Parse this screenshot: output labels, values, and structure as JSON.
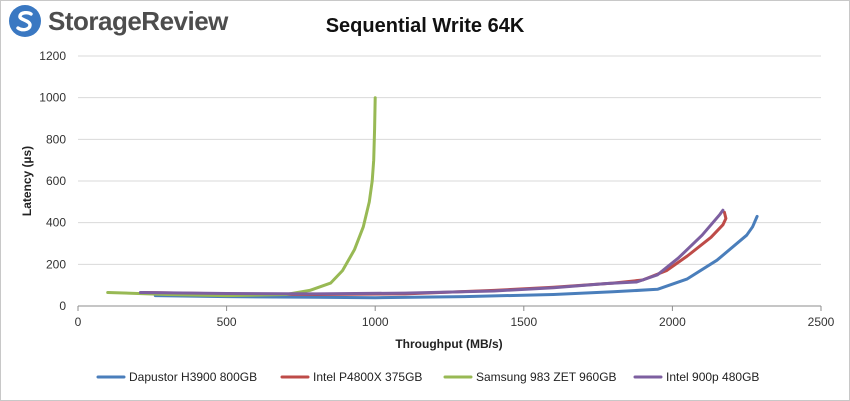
{
  "brand": {
    "name": "StorageReview",
    "icon": "storagereview-logo-icon",
    "color": "#3a78c2"
  },
  "chart_data": {
    "type": "line",
    "title": "Sequential Write 64K",
    "xlabel": "Throughput (MB/s)",
    "ylabel": "Latency (µs)",
    "xlim": [
      0,
      2500
    ],
    "ylim": [
      0,
      1200
    ],
    "xticks": [
      "0",
      "500",
      "1000",
      "1500",
      "2000",
      "2500"
    ],
    "yticks": [
      "0",
      "200",
      "400",
      "600",
      "800",
      "1000",
      "1200"
    ],
    "grid": "horizontal",
    "legend": "bottom",
    "series": [
      {
        "name": "Dapustor H3900 800GB",
        "color": "#4a7ebb",
        "x": [
          260,
          500,
          800,
          1000,
          1300,
          1600,
          1800,
          1950,
          2050,
          2150,
          2250,
          2270,
          2285
        ],
        "y": [
          50,
          45,
          42,
          40,
          45,
          55,
          68,
          80,
          130,
          220,
          340,
          380,
          430
        ]
      },
      {
        "name": "Intel P4800X 375GB",
        "color": "#be4b48",
        "x": [
          220,
          500,
          800,
          1100,
          1400,
          1600,
          1800,
          1900,
          1980,
          2050,
          2130,
          2170,
          2180,
          2175
        ],
        "y": [
          65,
          58,
          55,
          58,
          75,
          90,
          110,
          125,
          170,
          240,
          330,
          390,
          420,
          450
        ]
      },
      {
        "name": "Samsung 983 ZET 960GB",
        "color": "#98b954",
        "x": [
          100,
          300,
          500,
          700,
          780,
          850,
          890,
          930,
          960,
          980,
          990,
          995,
          998,
          1000
        ],
        "y": [
          65,
          55,
          50,
          55,
          75,
          110,
          170,
          270,
          380,
          500,
          600,
          700,
          850,
          1000
        ]
      },
      {
        "name": "Intel 900p 480GB",
        "color": "#7d5fa0",
        "x": [
          210,
          500,
          800,
          1100,
          1400,
          1600,
          1780,
          1880,
          1950,
          2020,
          2100,
          2160,
          2170
        ],
        "y": [
          65,
          60,
          58,
          62,
          72,
          88,
          108,
          115,
          150,
          230,
          340,
          440,
          460
        ]
      }
    ]
  }
}
